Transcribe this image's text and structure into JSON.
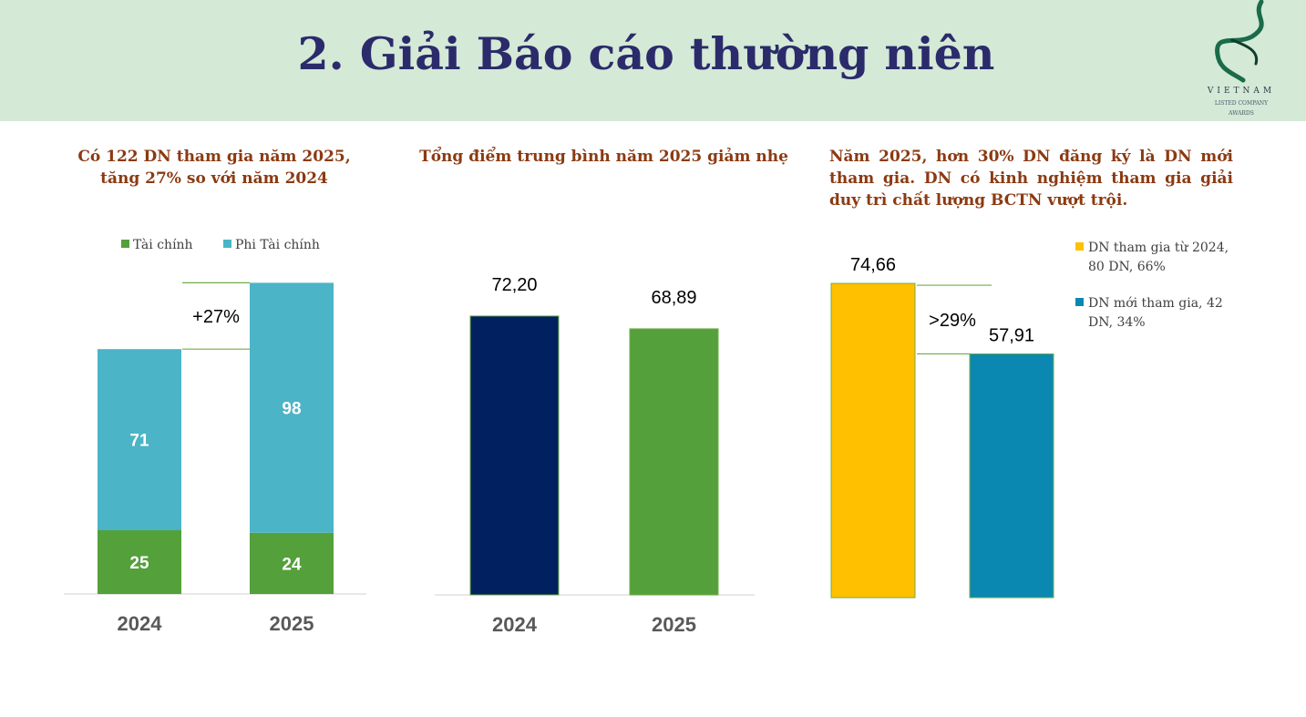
{
  "header": {
    "title": "2. Giải Báo cáo thường niên",
    "logo_line1": "VIETNAM",
    "logo_line2": "LISTED COMPANY",
    "logo_line3": "AWARDS"
  },
  "colors": {
    "header_bg": "#d4e9d6",
    "title": "#2b2b6b",
    "heading": "#8b3a12",
    "tai_chinh": "#54a03a",
    "phi_tai_chinh": "#4bb4c6",
    "navy": "#002060",
    "green": "#54a03a",
    "yellow": "#ffc000",
    "teal": "#0a88b2",
    "annotation_line": "#70ad47"
  },
  "panels": {
    "left_heading": "Có 122 DN tham gia năm 2025, tăng 27% so với năm 2024",
    "middle_heading": "Tổng điểm trung bình năm 2025 giảm nhẹ",
    "right_heading": "Năm 2025, hơn 30% DN đăng ký là DN mới tham gia. DN có kinh nghiệm tham gia giải duy trì chất lượng BCTN vượt trội."
  },
  "chart_data": [
    {
      "type": "bar",
      "stacked": true,
      "categories": [
        "2024",
        "2025"
      ],
      "series": [
        {
          "name": "Tài chính",
          "values": [
            25,
            24
          ]
        },
        {
          "name": "Phi Tài chính",
          "values": [
            71,
            98
          ]
        }
      ],
      "annotation": "+27%",
      "legend": "top-center"
    },
    {
      "type": "bar",
      "categories": [
        "2024",
        "2025"
      ],
      "values": [
        72.2,
        68.89
      ],
      "value_labels": [
        "72,20",
        "68,89"
      ]
    },
    {
      "type": "bar",
      "categories": [
        "DN tham gia từ 2024, 80 DN, 66%",
        "DN mới tham gia, 42 DN, 34%"
      ],
      "values": [
        74.66,
        57.91
      ],
      "value_labels": [
        "74,66",
        "57,91"
      ],
      "annotation": ">29%",
      "legend": "right"
    }
  ]
}
